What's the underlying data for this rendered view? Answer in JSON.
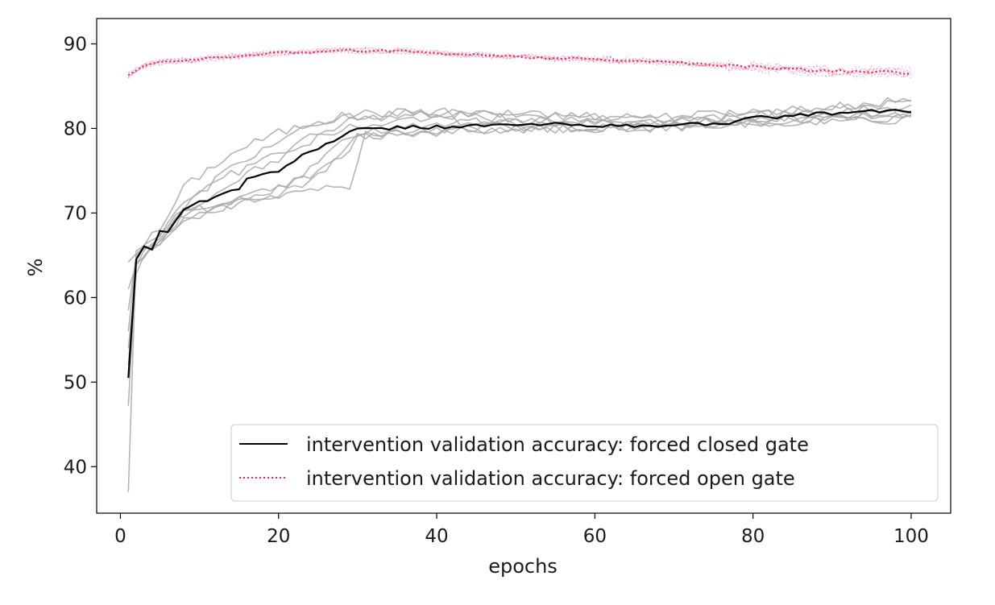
{
  "chart_data": {
    "type": "line",
    "title": "",
    "xlabel": "epochs",
    "ylabel": "%",
    "xlim": [
      -3,
      105
    ],
    "ylim": [
      34.5,
      93
    ],
    "x_ticks": [
      0,
      20,
      40,
      60,
      80,
      100
    ],
    "y_ticks": [
      40,
      50,
      60,
      70,
      80,
      90
    ],
    "grid": false,
    "legend_position": "lower right",
    "colors": {
      "closed_mean": "#000000",
      "closed_runs": "#a8a8a8",
      "open": "#e0245e"
    },
    "closed_gate_mean_anchors": [
      [
        1,
        50.5
      ],
      [
        2,
        64.5
      ],
      [
        3,
        66.2
      ],
      [
        4,
        65.8
      ],
      [
        5,
        67.8
      ],
      [
        6,
        67.6
      ],
      [
        7,
        69.3
      ],
      [
        8,
        70.5
      ],
      [
        9,
        70.9
      ],
      [
        10,
        71.3
      ],
      [
        12,
        71.9
      ],
      [
        14,
        72.6
      ],
      [
        15,
        72.8
      ],
      [
        16,
        74.2
      ],
      [
        18,
        74.5
      ],
      [
        20,
        74.8
      ],
      [
        22,
        76.3
      ],
      [
        24,
        77.2
      ],
      [
        26,
        78.2
      ],
      [
        28,
        79.0
      ],
      [
        30,
        79.9
      ],
      [
        35,
        80.1
      ],
      [
        40,
        80.2
      ],
      [
        45,
        80.3
      ],
      [
        50,
        80.4
      ],
      [
        55,
        80.5
      ],
      [
        60,
        80.4
      ],
      [
        65,
        80.2
      ],
      [
        70,
        80.4
      ],
      [
        75,
        80.6
      ],
      [
        78,
        80.8
      ],
      [
        80,
        81.2
      ],
      [
        85,
        81.5
      ],
      [
        90,
        81.8
      ],
      [
        95,
        82.0
      ],
      [
        100,
        82.1
      ]
    ],
    "closed_gate_run_anchors": [
      [
        [
          1,
          37.0
        ],
        [
          2,
          65.8
        ],
        [
          5,
          68.0
        ],
        [
          8,
          73.0
        ],
        [
          12,
          75.8
        ],
        [
          16,
          78.0
        ],
        [
          20,
          79.5
        ],
        [
          25,
          80.8
        ],
        [
          30,
          81.8
        ],
        [
          40,
          82.0
        ],
        [
          50,
          81.7
        ],
        [
          60,
          81.4
        ],
        [
          70,
          81.2
        ],
        [
          80,
          81.8
        ],
        [
          90,
          82.3
        ],
        [
          100,
          83.2
        ]
      ],
      [
        [
          1,
          47.2
        ],
        [
          2,
          64.0
        ],
        [
          5,
          67.5
        ],
        [
          8,
          70.5
        ],
        [
          12,
          74.0
        ],
        [
          16,
          76.5
        ],
        [
          20,
          78.5
        ],
        [
          25,
          80.5
        ],
        [
          30,
          81.5
        ],
        [
          40,
          81.8
        ],
        [
          50,
          81.6
        ],
        [
          60,
          81.5
        ],
        [
          70,
          81.4
        ],
        [
          80,
          82.0
        ],
        [
          90,
          82.5
        ],
        [
          100,
          83.4
        ]
      ],
      [
        [
          1,
          54.0
        ],
        [
          2,
          63.2
        ],
        [
          5,
          66.8
        ],
        [
          8,
          69.8
        ],
        [
          12,
          71.0
        ],
        [
          16,
          72.0
        ],
        [
          20,
          73.0
        ],
        [
          24,
          74.5
        ],
        [
          28,
          76.8
        ],
        [
          30,
          79.2
        ],
        [
          40,
          80.0
        ],
        [
          50,
          80.1
        ],
        [
          60,
          80.0
        ],
        [
          70,
          80.3
        ],
        [
          80,
          80.7
        ],
        [
          90,
          81.0
        ],
        [
          100,
          81.0
        ]
      ],
      [
        [
          1,
          64.2
        ],
        [
          2,
          65.0
        ],
        [
          5,
          66.5
        ],
        [
          8,
          69.0
        ],
        [
          12,
          70.2
        ],
        [
          16,
          71.2
        ],
        [
          20,
          72.0
        ],
        [
          25,
          73.0
        ],
        [
          29,
          72.8
        ],
        [
          31,
          79.5
        ],
        [
          40,
          79.8
        ],
        [
          50,
          79.9
        ],
        [
          60,
          79.8
        ],
        [
          70,
          80.2
        ],
        [
          80,
          80.5
        ],
        [
          90,
          80.9
        ],
        [
          100,
          81.2
        ]
      ],
      [
        [
          1,
          61.0
        ],
        [
          2,
          64.2
        ],
        [
          5,
          67.2
        ],
        [
          8,
          70.0
        ],
        [
          12,
          70.8
        ],
        [
          16,
          71.8
        ],
        [
          20,
          73.0
        ],
        [
          25,
          75.5
        ],
        [
          28,
          78.5
        ],
        [
          30,
          79.6
        ],
        [
          40,
          80.6
        ],
        [
          50,
          80.8
        ],
        [
          60,
          80.7
        ],
        [
          70,
          80.6
        ],
        [
          80,
          81.2
        ],
        [
          90,
          81.6
        ],
        [
          100,
          81.8
        ]
      ],
      [
        [
          1,
          58.5
        ],
        [
          2,
          64.8
        ],
        [
          5,
          67.0
        ],
        [
          8,
          69.2
        ],
        [
          12,
          70.5
        ],
        [
          16,
          71.4
        ],
        [
          20,
          72.3
        ],
        [
          24,
          74.0
        ],
        [
          28,
          76.5
        ],
        [
          30,
          79.0
        ],
        [
          40,
          79.6
        ],
        [
          50,
          79.8
        ],
        [
          60,
          80.0
        ],
        [
          70,
          80.1
        ],
        [
          80,
          80.8
        ],
        [
          90,
          81.3
        ],
        [
          100,
          81.6
        ]
      ],
      [
        [
          1,
          56.0
        ],
        [
          2,
          65.2
        ],
        [
          5,
          67.6
        ],
        [
          8,
          71.5
        ],
        [
          12,
          73.5
        ],
        [
          16,
          75.5
        ],
        [
          20,
          77.0
        ],
        [
          25,
          79.5
        ],
        [
          30,
          81.2
        ],
        [
          40,
          81.6
        ],
        [
          50,
          81.2
        ],
        [
          60,
          80.9
        ],
        [
          70,
          80.9
        ],
        [
          80,
          81.5
        ],
        [
          90,
          82.0
        ],
        [
          100,
          82.6
        ]
      ],
      [
        [
          1,
          52.0
        ],
        [
          2,
          63.8
        ],
        [
          5,
          66.6
        ],
        [
          8,
          70.2
        ],
        [
          12,
          72.5
        ],
        [
          16,
          74.8
        ],
        [
          20,
          76.5
        ],
        [
          25,
          78.8
        ],
        [
          30,
          80.6
        ],
        [
          40,
          81.0
        ],
        [
          50,
          80.7
        ],
        [
          60,
          80.4
        ],
        [
          70,
          80.5
        ],
        [
          80,
          81.0
        ],
        [
          90,
          81.4
        ],
        [
          100,
          82.0
        ]
      ]
    ],
    "open_gate_anchors": [
      [
        1,
        86.3
      ],
      [
        3,
        87.5
      ],
      [
        6,
        87.9
      ],
      [
        10,
        88.2
      ],
      [
        15,
        88.6
      ],
      [
        20,
        88.9
      ],
      [
        25,
        89.1
      ],
      [
        28,
        89.3
      ],
      [
        30,
        89.2
      ],
      [
        35,
        89.2
      ],
      [
        40,
        88.9
      ],
      [
        45,
        88.7
      ],
      [
        50,
        88.5
      ],
      [
        55,
        88.3
      ],
      [
        60,
        88.2
      ],
      [
        65,
        88.0
      ],
      [
        70,
        87.8
      ],
      [
        75,
        87.5
      ],
      [
        80,
        87.3
      ],
      [
        85,
        87.0
      ],
      [
        90,
        86.8
      ],
      [
        95,
        86.7
      ],
      [
        100,
        86.6
      ]
    ],
    "series": [
      {
        "name": "intervention validation accuracy: forced closed gate",
        "style": "solid"
      },
      {
        "name": "intervention validation accuracy: forced open gate",
        "style": "dotted"
      }
    ]
  }
}
